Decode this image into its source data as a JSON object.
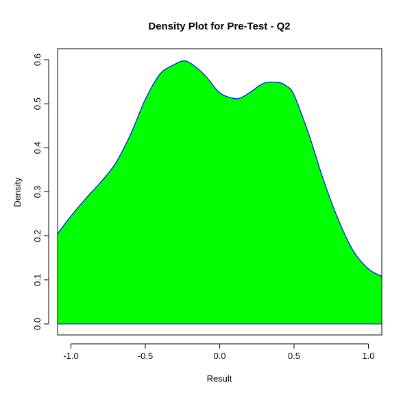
{
  "chart_data": {
    "type": "area",
    "title": "Density Plot for Pre-Test - Q2",
    "xlabel": "Result",
    "ylabel": "Density",
    "xlim": [
      -1.09,
      1.09
    ],
    "ylim": [
      -0.025,
      0.625
    ],
    "x_ticks": [
      -1.0,
      -0.5,
      0.0,
      0.5,
      1.0
    ],
    "x_tick_labels": [
      "-1.0",
      "-0.5",
      "0.0",
      "0.5",
      "1.0"
    ],
    "y_ticks": [
      0.0,
      0.1,
      0.2,
      0.3,
      0.4,
      0.5,
      0.6
    ],
    "y_tick_labels": [
      "0.0",
      "0.1",
      "0.2",
      "0.3",
      "0.4",
      "0.5",
      "0.6"
    ],
    "grid": false,
    "fill_color": "#00ff00",
    "line_color": "#0000ff",
    "baseline": 0.0,
    "series": [
      {
        "x": [
          -1.09,
          -1.0,
          -0.9,
          -0.8,
          -0.7,
          -0.6,
          -0.5,
          -0.4,
          -0.3,
          -0.25,
          -0.2,
          -0.1,
          0.0,
          0.1,
          0.15,
          0.2,
          0.3,
          0.4,
          0.45,
          0.5,
          0.6,
          0.7,
          0.8,
          0.9,
          1.0,
          1.09
        ],
        "y": [
          0.205,
          0.245,
          0.285,
          0.322,
          0.365,
          0.43,
          0.51,
          0.568,
          0.59,
          0.597,
          0.593,
          0.565,
          0.525,
          0.512,
          0.515,
          0.525,
          0.547,
          0.548,
          0.54,
          0.52,
          0.43,
          0.325,
          0.235,
          0.165,
          0.125,
          0.108
        ]
      }
    ]
  }
}
